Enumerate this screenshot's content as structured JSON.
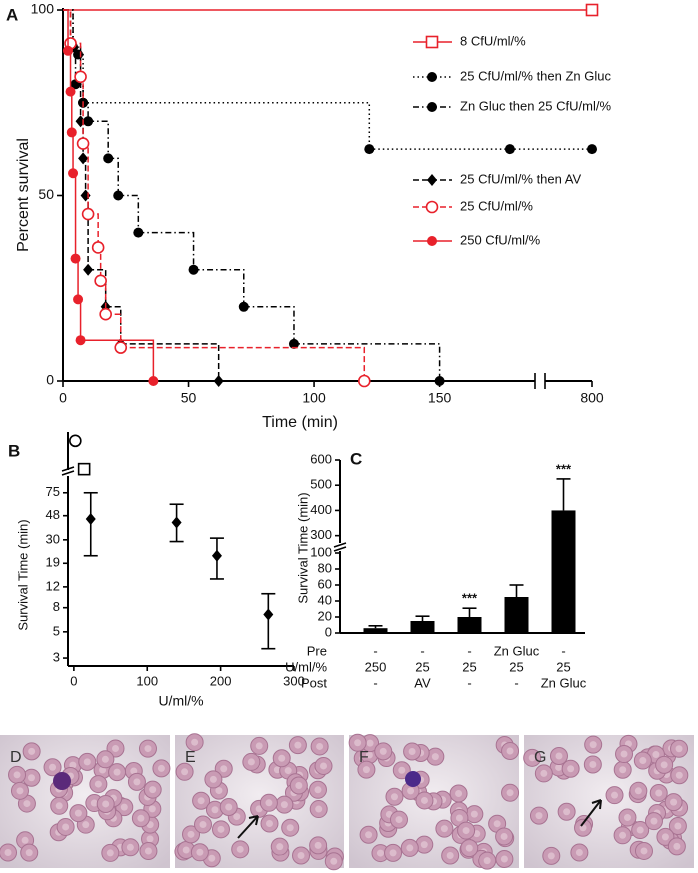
{
  "chart_data": [
    {
      "type": "step",
      "panel": "A",
      "xlabel": "Time (min)",
      "ylabel": "Percent survival",
      "xlim": [
        0,
        800
      ],
      "xbreak": [
        188,
        790
      ],
      "xticks": [
        0,
        50,
        100,
        150,
        800
      ],
      "ylim": [
        0,
        100
      ],
      "yticks": [
        0,
        50,
        100
      ],
      "series": [
        {
          "name": "8 CfU/ml/%",
          "color": "#e8212b",
          "line": "solid",
          "marker": "square-open",
          "x": [
            0,
            800
          ],
          "values": [
            100,
            100
          ]
        },
        {
          "name": "25 CfU/ml/% then Zn Gluc",
          "color": "#000000",
          "line": "dotted",
          "marker": "circle-filled",
          "x": [
            0,
            4,
            6,
            8,
            122,
            178,
            800
          ],
          "values": [
            100,
            90,
            88,
            75,
            62.5,
            62.5,
            62.5
          ]
        },
        {
          "name": "Zn Gluc then 25 CfU/ml/%",
          "color": "#000000",
          "line": "dashdot",
          "marker": "circle-filled",
          "x": [
            0,
            4,
            5,
            8,
            10,
            18,
            22,
            30,
            52,
            72,
            92,
            150
          ],
          "values": [
            100,
            90,
            80,
            75,
            70,
            60,
            50,
            40,
            30,
            20,
            10,
            0
          ]
        },
        {
          "name": "25 CfU/ml/% then AV",
          "color": "#000000",
          "line": "dashed",
          "marker": "diamond",
          "x": [
            0,
            3,
            7,
            8,
            9,
            10,
            17,
            23,
            62
          ],
          "values": [
            100,
            90,
            70,
            60,
            50,
            30,
            20,
            10,
            0
          ]
        },
        {
          "name": "25 CfU/ml/%",
          "color": "#e8212b",
          "line": "dashed",
          "marker": "circle-open",
          "x": [
            0,
            3,
            7,
            8,
            10,
            14,
            15,
            17,
            23,
            120
          ],
          "values": [
            100,
            91,
            82,
            64,
            45,
            36,
            27,
            18,
            9,
            0
          ]
        },
        {
          "name": "250 CfU/ml/%",
          "color": "#e8212b",
          "line": "solid",
          "marker": "circle-filled",
          "x": [
            0,
            2,
            3,
            3.5,
            4,
            5,
            6,
            7,
            36
          ],
          "values": [
            100,
            89,
            78,
            67,
            56,
            33,
            22,
            11,
            0
          ]
        }
      ]
    },
    {
      "type": "scatter",
      "panel": "B",
      "xlabel": "U/ml/%",
      "ylabel": "Survival Time (min)",
      "xlim": [
        -8,
        300
      ],
      "xticks": [
        0,
        100,
        200,
        300
      ],
      "yscale": "log",
      "ylim": [
        2.57,
        1000
      ],
      "ybreak": [
        100,
        300
      ],
      "yticks": [
        3,
        5,
        8,
        12,
        19,
        30,
        48,
        75
      ],
      "series": [
        {
          "color": "#000000",
          "marker": "diamond",
          "x": [
            23,
            140,
            195,
            265
          ],
          "values": [
            45,
            42,
            22,
            7
          ],
          "lower": [
            22,
            29,
            14,
            3.6
          ],
          "upper": [
            75,
            60,
            31,
            10.5
          ]
        },
        {
          "color": "#000000",
          "marker": "circle-open",
          "x": [
            2
          ],
          "values": [
            850
          ]
        },
        {
          "color": "#000000",
          "marker": "square-open",
          "x": [
            14
          ],
          "values": [
            330
          ]
        }
      ]
    },
    {
      "type": "bar",
      "panel": "C",
      "ylabel": "Survival Time (min)",
      "ylim": [
        0,
        600
      ],
      "ybreak": [
        105,
        255
      ],
      "yticks": [
        0,
        20,
        40,
        60,
        80,
        100,
        300,
        400,
        500,
        600
      ],
      "values": [
        6,
        15,
        20,
        45,
        400
      ],
      "errors": [
        3,
        6,
        11,
        15,
        125
      ],
      "color": "#000000",
      "annotations": [
        {
          "index": 2,
          "text": "***"
        },
        {
          "index": 4,
          "text": "***"
        }
      ],
      "rows": [
        {
          "label": "Pre",
          "cells": [
            "-",
            "-",
            "-",
            "Zn Gluc",
            "-"
          ]
        },
        {
          "label": "U/ml/%",
          "cells": [
            "250",
            "25",
            "25",
            "25",
            "25"
          ]
        },
        {
          "label": "Post",
          "cells": [
            "-",
            "AV",
            "-",
            "-",
            "Zn Gluc"
          ]
        }
      ]
    }
  ],
  "micrographs": {
    "labels": [
      "D",
      "E",
      "F",
      "G"
    ]
  }
}
